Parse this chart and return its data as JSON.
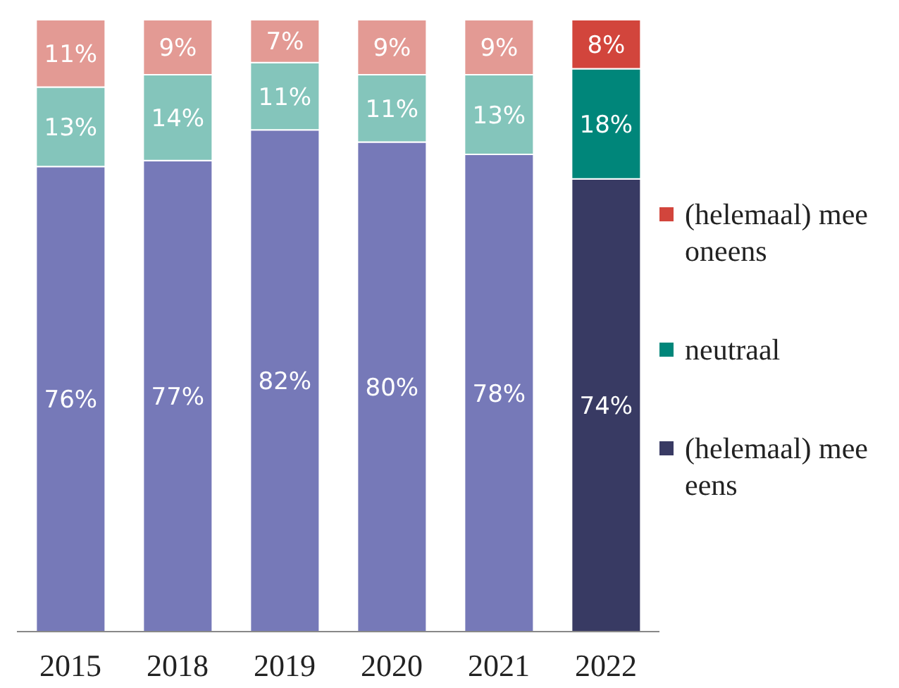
{
  "chart_data": {
    "type": "bar",
    "stacked": true,
    "legend": "right",
    "grid": false,
    "categories": [
      "2015",
      "2018",
      "2019",
      "2020",
      "2021",
      "2022"
    ],
    "series": [
      {
        "name": "(helemaal) mee eens",
        "color": "#383a63",
        "colors": [
          "#7679b8",
          "#7679b8",
          "#7679b8",
          "#7679b8",
          "#7679b8",
          "#383a63"
        ],
        "values": [
          76,
          77,
          82,
          80,
          78,
          74
        ],
        "value_labels": [
          "76%",
          "77%",
          "82%",
          "80%",
          "78%",
          "74%"
        ]
      },
      {
        "name": "neutraal",
        "color": "#00867a",
        "colors": [
          "#84c5bb",
          "#84c5bb",
          "#84c5bb",
          "#84c5bb",
          "#84c5bb",
          "#00867a"
        ],
        "values": [
          13,
          14,
          11,
          11,
          13,
          18
        ],
        "value_labels": [
          "13%",
          "14%",
          "11%",
          "11%",
          "13%",
          "18%"
        ]
      },
      {
        "name": "(helemaal) mee oneens",
        "color": "#d2453c",
        "colors": [
          "#e39a94",
          "#e39a94",
          "#e39a94",
          "#e39a94",
          "#e39a94",
          "#d2453c"
        ],
        "values": [
          11,
          9,
          7,
          9,
          9,
          8
        ],
        "value_labels": [
          "11%",
          "9%",
          "7%",
          "9%",
          "9%",
          "8%"
        ]
      }
    ]
  }
}
